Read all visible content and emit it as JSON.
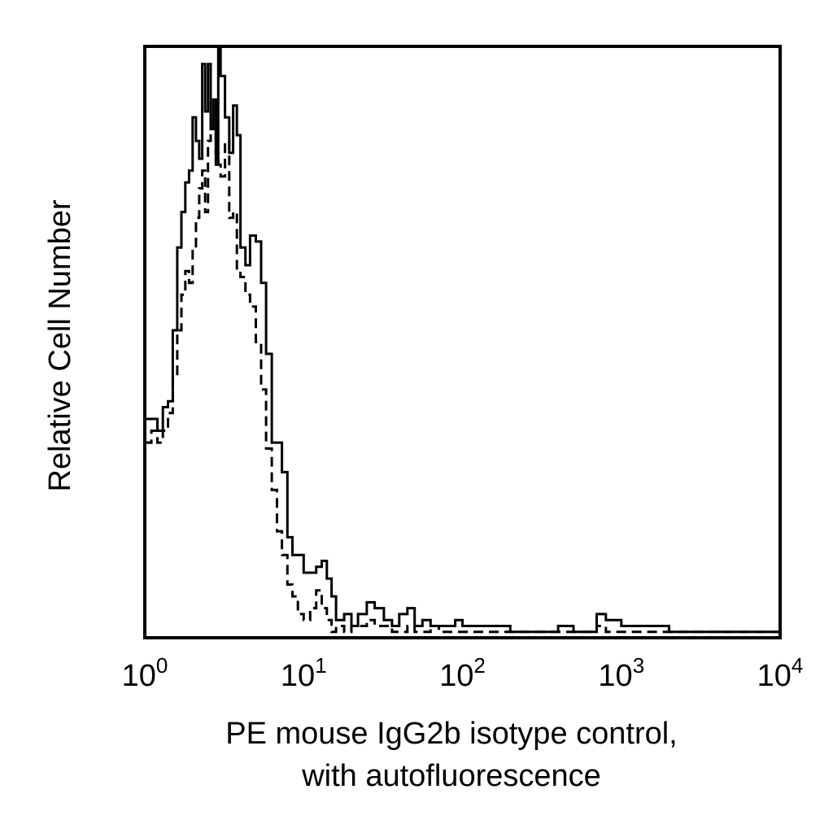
{
  "chart_data": {
    "type": "line",
    "title": "",
    "xlabel": [
      "PE mouse IgG2b isotype control,",
      "with autofluorescence"
    ],
    "ylabel": "Relative Cell Number",
    "x_scale": "log",
    "xlim": [
      1,
      10000
    ],
    "ylim": [
      0,
      100
    ],
    "x_ticks": [
      {
        "base": "10",
        "exp": "0"
      },
      {
        "base": "10",
        "exp": "1"
      },
      {
        "base": "10",
        "exp": "2"
      },
      {
        "base": "10",
        "exp": "3"
      },
      {
        "base": "10",
        "exp": "4"
      }
    ],
    "grid": false,
    "legend": false,
    "series": [
      {
        "style": "solid",
        "color": "#000000",
        "x": [
          1,
          1.1,
          1.2,
          1.3,
          1.4,
          1.5,
          1.6,
          1.7,
          1.8,
          1.9,
          2.0,
          2.1,
          2.2,
          2.3,
          2.4,
          2.5,
          2.6,
          2.7,
          2.8,
          2.9,
          3.0,
          3.2,
          3.4,
          3.6,
          3.8,
          4.0,
          4.3,
          4.6,
          5.0,
          5.4,
          5.8,
          6.3,
          6.8,
          7.3,
          7.9,
          8.5,
          9.2,
          10,
          11,
          12,
          13,
          14,
          15,
          16,
          18,
          20,
          22,
          25,
          28,
          32,
          36,
          40,
          45,
          50,
          56,
          63,
          71,
          80,
          90,
          100,
          120,
          150,
          200,
          250,
          300,
          400,
          500,
          600,
          700,
          800,
          1000,
          1200,
          1500,
          2000,
          3000,
          4000,
          5000,
          7000,
          9000,
          10000
        ],
        "y": [
          37,
          37,
          35,
          39,
          40,
          52,
          66,
          72,
          77,
          79,
          88,
          84,
          81,
          97,
          89,
          97,
          86,
          91,
          80,
          100,
          95,
          88,
          82,
          90,
          85,
          66,
          63,
          68,
          67,
          60,
          48,
          33,
          33,
          28,
          17,
          14,
          14,
          11,
          11,
          12,
          13,
          10,
          7,
          3,
          4,
          2,
          4,
          6,
          5,
          3,
          2,
          4,
          5,
          2,
          3,
          2,
          2,
          2,
          3,
          2,
          2,
          2,
          1,
          1,
          1,
          2,
          1,
          1,
          4,
          3,
          2,
          2,
          2,
          1,
          1,
          1,
          1,
          1,
          1,
          0
        ]
      },
      {
        "style": "dashed",
        "color": "#000000",
        "x": [
          1,
          1.1,
          1.2,
          1.3,
          1.4,
          1.5,
          1.6,
          1.7,
          1.8,
          1.9,
          2.0,
          2.1,
          2.2,
          2.3,
          2.4,
          2.5,
          2.6,
          2.7,
          2.8,
          2.9,
          3.0,
          3.2,
          3.4,
          3.6,
          3.8,
          4.0,
          4.3,
          4.6,
          5.0,
          5.4,
          5.8,
          6.3,
          6.8,
          7.3,
          7.9,
          8.5,
          9.2,
          10,
          11,
          12,
          13,
          14,
          15,
          16,
          18,
          20,
          22,
          25,
          28,
          32,
          36,
          40,
          45,
          50,
          56,
          63,
          71,
          80,
          90,
          100,
          120,
          150,
          200,
          250,
          300,
          400,
          500,
          600,
          700,
          800,
          1000,
          1200,
          1500,
          2000,
          3000,
          4000,
          5000,
          7000,
          9000,
          10000
        ],
        "y": [
          33,
          35,
          33,
          35,
          38,
          44,
          52,
          58,
          62,
          60,
          66,
          71,
          76,
          79,
          72,
          84,
          88,
          86,
          82,
          80,
          78,
          84,
          71,
          72,
          62,
          61,
          58,
          56,
          50,
          42,
          32,
          25,
          18,
          14,
          9,
          7,
          4,
          3,
          5,
          8,
          5,
          3,
          1,
          2,
          1,
          2,
          2,
          3,
          2,
          2,
          1,
          1,
          2,
          1,
          1,
          2,
          1,
          1,
          1,
          1,
          1,
          1,
          1,
          1,
          1,
          1,
          1,
          1,
          2,
          1,
          1,
          1,
          1,
          1,
          1,
          1,
          1,
          1,
          1,
          0
        ]
      }
    ]
  }
}
